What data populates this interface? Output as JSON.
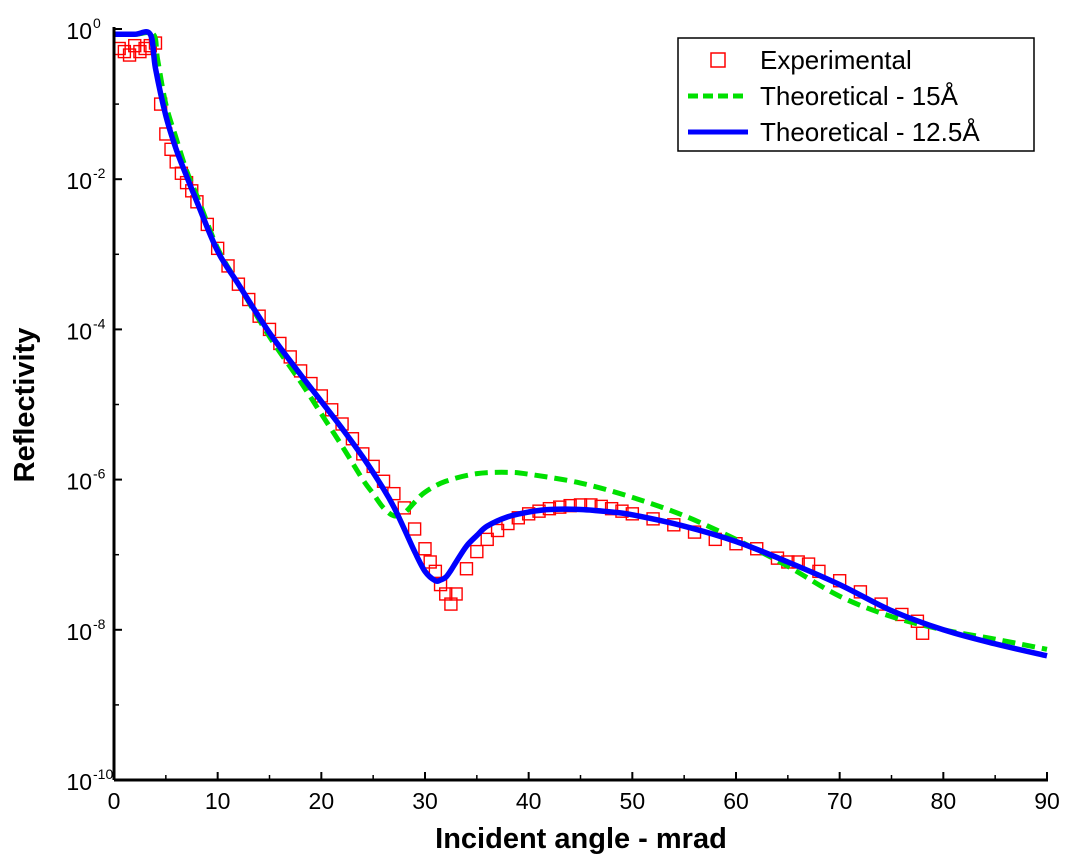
{
  "chart_data": {
    "type": "line",
    "xlabel": "Incident angle - mrad",
    "ylabel": "Reflectivity",
    "xlim": [
      0,
      90
    ],
    "ylim": [
      1e-10,
      1
    ],
    "yscale": "log",
    "x_ticks": [
      "0",
      "10",
      "20",
      "30",
      "40",
      "50",
      "60",
      "70",
      "80",
      "90"
    ],
    "y_ticks": [
      {
        "base": "10",
        "exp": "0"
      },
      {
        "base": "10",
        "exp": "-2"
      },
      {
        "base": "10",
        "exp": "-4"
      },
      {
        "base": "10",
        "exp": "-6"
      },
      {
        "base": "10",
        "exp": "-8"
      },
      {
        "base": "10",
        "exp": "-10"
      }
    ],
    "grid": false,
    "legend_position": "top-right",
    "series": [
      {
        "name": "Experimental",
        "style": "markers",
        "marker": "open-square",
        "color": "#ff0000",
        "x": [
          0.5,
          1.0,
          1.5,
          2.0,
          2.5,
          3.0,
          3.5,
          4.0,
          4.5,
          5.0,
          5.5,
          6.0,
          6.5,
          7.0,
          7.5,
          8.0,
          9,
          10,
          11,
          12,
          13,
          14,
          15,
          16,
          17,
          18,
          19,
          20,
          21,
          22,
          23,
          24,
          25,
          26,
          27,
          28,
          29,
          30,
          30.5,
          31,
          31.5,
          32,
          32.5,
          33,
          34,
          35,
          36,
          37,
          38,
          39,
          40,
          41,
          42,
          43,
          44,
          45,
          46,
          47,
          48,
          49,
          50,
          52,
          54,
          56,
          58,
          60,
          62,
          64,
          65,
          66,
          67,
          68,
          70,
          72,
          74,
          76,
          77.5,
          78
        ],
        "y": [
          0.55,
          0.5,
          0.45,
          0.6,
          0.5,
          0.55,
          0.6,
          0.65,
          0.1,
          0.04,
          0.025,
          0.017,
          0.012,
          0.009,
          0.007,
          0.005,
          0.0025,
          0.0012,
          0.0007,
          0.0004,
          0.00025,
          0.00015,
          0.0001,
          6.5e-05,
          4.3e-05,
          2.8e-05,
          1.9e-05,
          1.3e-05,
          8.5e-06,
          5.5e-06,
          3.5e-06,
          2.2e-06,
          1.5e-06,
          9.5e-07,
          6.5e-07,
          4.2e-07,
          2.2e-07,
          1.2e-07,
          8e-08,
          6e-08,
          4e-08,
          3e-08,
          2.2e-08,
          3e-08,
          6.5e-08,
          1.1e-07,
          1.6e-07,
          2.1e-07,
          2.6e-07,
          3.1e-07,
          3.5e-07,
          3.8e-07,
          4.1e-07,
          4.3e-07,
          4.5e-07,
          4.6e-07,
          4.6e-07,
          4.4e-07,
          4.1e-07,
          3.8e-07,
          3.5e-07,
          3e-07,
          2.5e-07,
          2e-07,
          1.6e-07,
          1.4e-07,
          1.2e-07,
          9e-08,
          8e-08,
          8e-08,
          7.5e-08,
          6e-08,
          4.5e-08,
          3.2e-08,
          2.2e-08,
          1.6e-08,
          1.3e-08,
          9e-09
        ]
      },
      {
        "name": "Theoretical - 15Å",
        "style": "dashed",
        "color": "#00e000",
        "x": [
          0,
          2,
          3.8,
          4.2,
          5,
          6,
          7,
          8,
          10,
          12,
          15,
          18,
          20,
          22,
          24,
          25,
          26,
          27,
          28,
          29,
          30,
          32,
          35,
          38,
          40,
          45,
          50,
          55,
          60,
          65,
          70,
          75,
          80,
          85,
          90
        ],
        "y": [
          0.85,
          0.85,
          0.85,
          0.4,
          0.1,
          0.035,
          0.013,
          0.006,
          0.0012,
          0.0004,
          8e-05,
          2e-05,
          7.5e-06,
          2.8e-06,
          1e-06,
          6.5e-07,
          4.2e-07,
          3.3e-07,
          3.6e-07,
          5e-07,
          6.8e-07,
          9.5e-07,
          1.2e-06,
          1.25e-06,
          1.18e-06,
          9e-07,
          5.8e-07,
          3.3e-07,
          1.6e-07,
          7e-08,
          2.8e-08,
          1.5e-08,
          1e-08,
          7.5e-09,
          5.5e-09
        ]
      },
      {
        "name": "Theoretical - 12.5Å",
        "style": "solid",
        "color": "#0000ff",
        "x": [
          0,
          2,
          3.5,
          4,
          5,
          6,
          7,
          8,
          10,
          12,
          15,
          18,
          20,
          22,
          24,
          26,
          27,
          28,
          29,
          30,
          31,
          31.5,
          32,
          32.5,
          33,
          34,
          35,
          36,
          38,
          40,
          42,
          45,
          48,
          50,
          55,
          60,
          65,
          70,
          75,
          80,
          85,
          90
        ],
        "y": [
          0.85,
          0.85,
          0.85,
          0.3,
          0.07,
          0.025,
          0.011,
          0.005,
          0.0011,
          0.0004,
          9e-05,
          2.5e-05,
          1.1e-05,
          4.8e-06,
          2e-06,
          7.5e-07,
          4.3e-07,
          2.2e-07,
          1.1e-07,
          6e-08,
          4.5e-08,
          4.6e-08,
          5e-08,
          6.2e-08,
          8e-08,
          1.3e-07,
          1.8e-07,
          2.4e-07,
          3.2e-07,
          3.7e-07,
          4e-07,
          4e-07,
          3.7e-07,
          3.4e-07,
          2.4e-07,
          1.5e-07,
          8e-08,
          4e-08,
          1.8e-08,
          1e-08,
          6.5e-09,
          4.5e-09
        ]
      }
    ]
  }
}
